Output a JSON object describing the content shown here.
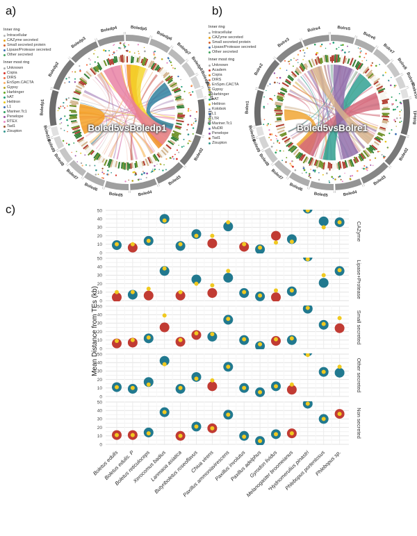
{
  "panels": {
    "a": {
      "label": "a)",
      "center_title": "Boled5vsBoledp1",
      "legend": {
        "inner_ring_title": "Inner ring",
        "inner_ring": [
          {
            "label": "Intracellular",
            "color": "#b3b3b3"
          },
          {
            "label": "CAZyme secreted",
            "color": "#e8a21a"
          },
          {
            "label": "Small secreted protein",
            "color": "#d35f2a"
          },
          {
            "label": "Lipase/Protease secreted",
            "color": "#3f6fb5"
          },
          {
            "label": "Other secreted",
            "color": "#3fa25c"
          }
        ],
        "inner_most_title": "Inner most ring",
        "inner_most": [
          {
            "label": "Unknown",
            "color": "#aaaaaa"
          },
          {
            "label": "Copia",
            "color": "#d73027"
          },
          {
            "label": "DIRS",
            "color": "#f46d43"
          },
          {
            "label": "EnSpm.CACTA",
            "color": "#fdae61"
          },
          {
            "label": "Gypsy",
            "color": "#b8a51f"
          },
          {
            "label": "Harbinger",
            "color": "#66a61e"
          },
          {
            "label": "hAT",
            "color": "#1b9e77"
          },
          {
            "label": "Helitron",
            "color": "#e6c618"
          },
          {
            "label": "L1",
            "color": "#386cb0"
          },
          {
            "label": "Mariner.Tc1",
            "color": "#2ca25f"
          },
          {
            "label": "Penelope",
            "color": "#984ea3"
          },
          {
            "label": "RTEX",
            "color": "#e78ac3"
          },
          {
            "label": "Tad1",
            "color": "#a0522d"
          },
          {
            "label": "Zisupton",
            "color": "#35978f"
          }
        ]
      },
      "genome1": [
        "Boledp1",
        "Boledp2",
        "Boledp3",
        "Boledp4",
        "Boledp5",
        "Boledp6",
        "Boledp7",
        "Boledp8",
        "Boledp9",
        "Boledp10"
      ],
      "genome2": [
        "Boled1",
        "Boled2",
        "Boled3",
        "Boled4",
        "Boled5",
        "Boled6",
        "Boled7",
        "Boled8",
        "Boled9",
        "Boled10"
      ],
      "big_chord_colors": [
        "#f59f1e",
        "#ef8f1c",
        "#2a7f9e",
        "#f4d626",
        "#e87ea1"
      ],
      "chord_palette": [
        "#f59e1c",
        "#f7d82a",
        "#25758f",
        "#e87ea1",
        "#cf5a9d",
        "#9b72b0",
        "#c0392b",
        "#e8a08c",
        "#ad9f9b",
        "#8c6bb1",
        "#d98880",
        "#f0b27a"
      ]
    },
    "b": {
      "label": "b)",
      "center_title": "Boled5vsBolre1",
      "legend": {
        "inner_ring_title": "Inner ring",
        "inner_ring": [
          {
            "label": "Intracellular",
            "color": "#b3b3b3"
          },
          {
            "label": "CAZyme secreted",
            "color": "#e8a21a"
          },
          {
            "label": "Small secreted protein",
            "color": "#d35f2a"
          },
          {
            "label": "Lipase/Protease secreted",
            "color": "#3f6fb5"
          },
          {
            "label": "Other secreted",
            "color": "#3fa25c"
          }
        ],
        "inner_most_title": "Inner most ring",
        "inner_most": [
          {
            "label": "Unknown",
            "color": "#aaaaaa"
          },
          {
            "label": "Academ",
            "color": "#d73027"
          },
          {
            "label": "Copia",
            "color": "#e08214"
          },
          {
            "label": "DIRS",
            "color": "#f46d43"
          },
          {
            "label": "EnSpm.CACTA",
            "color": "#fdae61"
          },
          {
            "label": "Gypsy",
            "color": "#b8a51f"
          },
          {
            "label": "Harbinger",
            "color": "#66a61e"
          },
          {
            "label": "hAT",
            "color": "#1b9e77"
          },
          {
            "label": "Helitron",
            "color": "#e6c618"
          },
          {
            "label": "Kolobok",
            "color": "#8da0cb"
          },
          {
            "label": "L1",
            "color": "#386cb0"
          },
          {
            "label": "LTR",
            "color": "#a6d854"
          },
          {
            "label": "Mariner.Tc1",
            "color": "#2ca25f"
          },
          {
            "label": "MuDR",
            "color": "#7570b3"
          },
          {
            "label": "Penelope",
            "color": "#984ea3"
          },
          {
            "label": "Tad1",
            "color": "#a0522d"
          },
          {
            "label": "Zisupton",
            "color": "#35978f"
          }
        ]
      },
      "genome1": [
        "Bolre1",
        "Bolre2",
        "Bolre3",
        "Bolre4",
        "Bolre5",
        "Bolre6",
        "Bolre7",
        "Bolre8",
        "Bolre9",
        "Bolre10"
      ],
      "genome2": [
        "Boled1",
        "Boled2",
        "Boled3",
        "Boled4",
        "Boled5",
        "Boled6",
        "Boled7",
        "Boled8",
        "Boled9",
        "Boled10"
      ],
      "big_chord_colors": [
        "#f0a22c",
        "#2a9d8f",
        "#d4687a",
        "#8e6aa8",
        "#d9b38c"
      ],
      "chord_palette": [
        "#f0a02c",
        "#27968a",
        "#d4687a",
        "#8e6aa8",
        "#c9a227",
        "#b07aa0",
        "#6b8cba",
        "#c05050",
        "#caa87e",
        "#9e7bb5",
        "#e2b6c1",
        "#86b0a2"
      ]
    },
    "c": {
      "label": "c)"
    }
  },
  "chart_data": {
    "type": "scatter",
    "title": "",
    "xlabel": "",
    "ylabel": "Mean Distance from TEs (kb)",
    "ylim": [
      0,
      52
    ],
    "yticks": [
      0,
      10,
      20,
      30,
      40,
      50
    ],
    "grid": true,
    "facet_position": "right",
    "point_colors": {
      "t": "#21798f",
      "r": "#c13b33",
      "yellow": "#f0c920"
    },
    "species": [
      "Boletus edulis",
      "Boletus edulis. P",
      "Boletus reticuloceps",
      "Xerocomus badius",
      "Lanmaoa asiatica",
      "Butyriboletus roseoflavus",
      "Chiua virens",
      "Paxillus ammoniavirescens",
      "Paxillus involutus",
      "Paxillus adelphus",
      "Gyrodon lividus",
      "Melanogaster broomeianus",
      "*Hydnomerulius pinastri",
      "Phlebopus portentosus",
      "Phlebopus sp."
    ],
    "facets": [
      {
        "label": "CAZyme",
        "main_color": [
          "t",
          "r",
          "t",
          "t",
          "t",
          "t",
          "r",
          "t",
          "r",
          "t",
          "r",
          "t",
          "t",
          "t",
          "t"
        ],
        "main_value": [
          9,
          6,
          14,
          40,
          8,
          22,
          11,
          31,
          7,
          4,
          20,
          16,
          52,
          37,
          36
        ],
        "yellow_value": [
          10,
          10,
          14,
          38,
          10,
          20,
          20,
          36,
          10,
          6,
          12,
          13,
          50,
          30,
          36
        ]
      },
      {
        "label": "Lipase+Protease",
        "main_color": [
          "r",
          "t",
          "r",
          "t",
          "r",
          "t",
          "r",
          "t",
          "t",
          "t",
          "r",
          "t",
          "t",
          "t",
          "t"
        ],
        "main_value": [
          4,
          7,
          6,
          35,
          6,
          25,
          9,
          27,
          9,
          5,
          4,
          11,
          52,
          21,
          35
        ],
        "yellow_value": [
          10,
          10,
          14,
          38,
          10,
          20,
          18,
          35,
          10,
          6,
          12,
          12,
          49,
          30,
          36
        ]
      },
      {
        "label": "Small secreted",
        "main_color": [
          "r",
          "r",
          "t",
          "r",
          "r",
          "r",
          "t",
          "t",
          "t",
          "t",
          "r",
          "t",
          "t",
          "t",
          "r"
        ],
        "main_value": [
          6,
          7,
          12,
          25,
          8,
          16,
          14,
          34,
          10,
          3,
          9,
          10,
          47,
          28,
          24
        ],
        "yellow_value": [
          9,
          10,
          13,
          39,
          10,
          18,
          17,
          35,
          11,
          5,
          11,
          12,
          48,
          29,
          36
        ]
      },
      {
        "label": "Other secreted",
        "main_color": [
          "t",
          "t",
          "t",
          "t",
          "t",
          "t",
          "r",
          "t",
          "t",
          "t",
          "t",
          "r",
          "t",
          "t",
          "t"
        ],
        "main_value": [
          11,
          9,
          17,
          42,
          9,
          23,
          12,
          35,
          10,
          5,
          12,
          8,
          53,
          29,
          28
        ],
        "yellow_value": [
          11,
          10,
          14,
          38,
          10,
          21,
          19,
          35,
          10,
          5,
          12,
          14,
          49,
          29,
          35
        ]
      },
      {
        "label": "Non secreted",
        "main_color": [
          "r",
          "r",
          "t",
          "t",
          "r",
          "t",
          "r",
          "t",
          "t",
          "t",
          "t",
          "r",
          "t",
          "t",
          "r"
        ],
        "main_value": [
          11,
          11,
          14,
          38,
          10,
          21,
          19,
          35,
          10,
          4,
          12,
          13,
          48,
          30,
          36
        ],
        "yellow_value": [
          11,
          11,
          13,
          38,
          10,
          21,
          19,
          35,
          9,
          4,
          12,
          13,
          48,
          30,
          36
        ]
      }
    ]
  }
}
